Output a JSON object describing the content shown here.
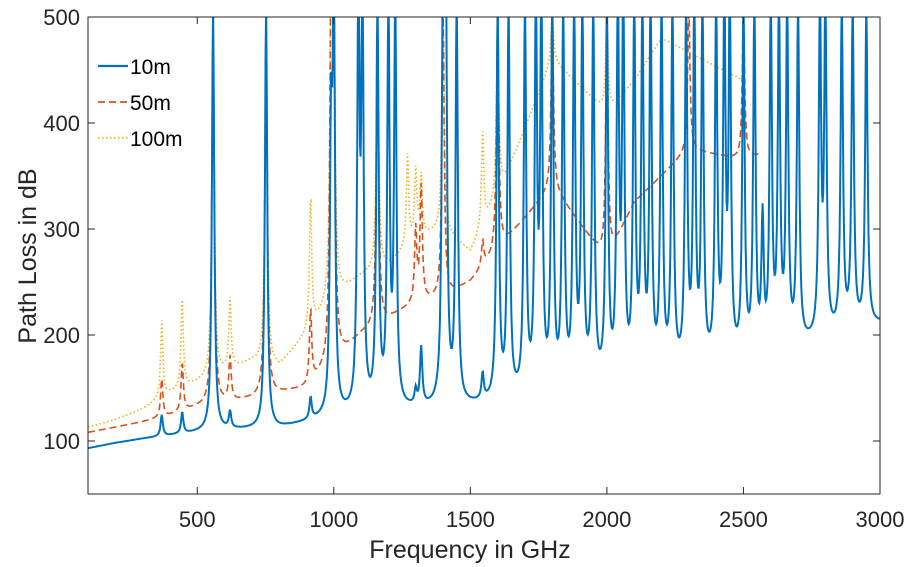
{
  "chart_data": {
    "type": "line",
    "title": "",
    "xlabel": "Frequency in GHz",
    "ylabel": "Path Loss in dB",
    "xlim": [
      100,
      3000
    ],
    "ylim": [
      50,
      500
    ],
    "xticks": [
      500,
      1000,
      1500,
      2000,
      2500,
      3000
    ],
    "yticks": [
      100,
      200,
      300,
      400,
      500
    ],
    "grid": false,
    "legend_position": "top-left",
    "series": [
      {
        "name": "10m",
        "color": "#0072BD",
        "style": "solid",
        "baseline": [
          [
            100,
            93
          ],
          [
            200,
            98
          ],
          [
            300,
            102
          ],
          [
            400,
            105
          ],
          [
            500,
            108
          ],
          [
            600,
            110
          ],
          [
            800,
            112
          ],
          [
            1000,
            122
          ],
          [
            1200,
            128
          ],
          [
            1400,
            130
          ],
          [
            1600,
            135
          ],
          [
            1800,
            142
          ],
          [
            2000,
            150
          ],
          [
            2200,
            158
          ],
          [
            2400,
            166
          ],
          [
            2600,
            178
          ],
          [
            2800,
            195
          ],
          [
            3000,
            210
          ]
        ],
        "peaks": [
          [
            370,
            116
          ],
          [
            445,
            118
          ],
          [
            558,
            500
          ],
          [
            620,
            118
          ],
          [
            752,
            500
          ],
          [
            915,
            130
          ],
          [
            990,
            360
          ],
          [
            1000,
            500
          ],
          [
            1090,
            500
          ],
          [
            1105,
            500
          ],
          [
            1160,
            500
          ],
          [
            1200,
            500
          ],
          [
            1225,
            500
          ],
          [
            1300,
            135
          ],
          [
            1320,
            175
          ],
          [
            1400,
            500
          ],
          [
            1410,
            500
          ],
          [
            1450,
            500
          ],
          [
            1545,
            150
          ],
          [
            1600,
            500
          ],
          [
            1640,
            500
          ],
          [
            1700,
            500
          ],
          [
            1740,
            500
          ],
          [
            1760,
            500
          ],
          [
            1800,
            500
          ],
          [
            1840,
            500
          ],
          [
            1880,
            500
          ],
          [
            1910,
            500
          ],
          [
            1950,
            500
          ],
          [
            2000,
            500
          ],
          [
            2040,
            500
          ],
          [
            2060,
            500
          ],
          [
            2100,
            500
          ],
          [
            2130,
            500
          ],
          [
            2160,
            500
          ],
          [
            2200,
            500
          ],
          [
            2240,
            500
          ],
          [
            2290,
            500
          ],
          [
            2320,
            500
          ],
          [
            2350,
            500
          ],
          [
            2400,
            500
          ],
          [
            2430,
            500
          ],
          [
            2450,
            500
          ],
          [
            2500,
            500
          ],
          [
            2540,
            500
          ],
          [
            2570,
            290
          ],
          [
            2600,
            500
          ],
          [
            2630,
            500
          ],
          [
            2660,
            500
          ],
          [
            2700,
            500
          ],
          [
            2780,
            500
          ],
          [
            2800,
            500
          ],
          [
            2860,
            500
          ],
          [
            2900,
            500
          ],
          [
            2950,
            500
          ]
        ]
      },
      {
        "name": "50m",
        "color": "#D95319",
        "style": "dashed",
        "baseline": [
          [
            100,
            108
          ],
          [
            200,
            113
          ],
          [
            300,
            118
          ],
          [
            400,
            124
          ],
          [
            500,
            132
          ],
          [
            600,
            136
          ],
          [
            700,
            140
          ],
          [
            800,
            145
          ],
          [
            900,
            150
          ],
          [
            1000,
            175
          ],
          [
            1100,
            200
          ],
          [
            1200,
            215
          ],
          [
            1300,
            230
          ],
          [
            1400,
            235
          ],
          [
            1500,
            250
          ],
          [
            1600,
            280
          ],
          [
            1800,
            340
          ],
          [
            2000,
            270
          ],
          [
            2100,
            325
          ],
          [
            2300,
            375
          ],
          [
            2500,
            365
          ],
          [
            2560,
            370
          ]
        ],
        "peaks": [
          [
            370,
            150
          ],
          [
            445,
            165
          ],
          [
            558,
            500
          ],
          [
            620,
            170
          ],
          [
            752,
            500
          ],
          [
            915,
            215
          ],
          [
            990,
            500
          ],
          [
            1000,
            500
          ],
          [
            1160,
            500
          ],
          [
            1300,
            290
          ],
          [
            1320,
            330
          ],
          [
            1400,
            500
          ],
          [
            1545,
            280
          ],
          [
            1600,
            500
          ],
          [
            1800,
            500
          ],
          [
            2000,
            500
          ],
          [
            2300,
            500
          ],
          [
            2500,
            500
          ]
        ]
      },
      {
        "name": "100m",
        "color": "#EDB120",
        "style": "dotted",
        "baseline": [
          [
            100,
            113
          ],
          [
            200,
            120
          ],
          [
            300,
            130
          ],
          [
            400,
            145
          ],
          [
            500,
            155
          ],
          [
            600,
            165
          ],
          [
            700,
            175
          ],
          [
            800,
            170
          ],
          [
            900,
            200
          ],
          [
            1000,
            235
          ],
          [
            1100,
            255
          ],
          [
            1200,
            265
          ],
          [
            1300,
            290
          ],
          [
            1400,
            300
          ],
          [
            1500,
            278
          ],
          [
            1600,
            330
          ],
          [
            1800,
            460
          ],
          [
            2000,
            410
          ],
          [
            2100,
            440
          ],
          [
            2200,
            480
          ],
          [
            2500,
            440
          ]
        ],
        "peaks": [
          [
            370,
            205
          ],
          [
            445,
            225
          ],
          [
            558,
            500
          ],
          [
            620,
            225
          ],
          [
            752,
            500
          ],
          [
            915,
            320
          ],
          [
            990,
            500
          ],
          [
            1000,
            500
          ],
          [
            1160,
            500
          ],
          [
            1270,
            360
          ],
          [
            1300,
            345
          ],
          [
            1320,
            340
          ],
          [
            1400,
            500
          ],
          [
            1545,
            385
          ],
          [
            1600,
            500
          ],
          [
            1800,
            500
          ],
          [
            2000,
            500
          ]
        ]
      }
    ]
  }
}
